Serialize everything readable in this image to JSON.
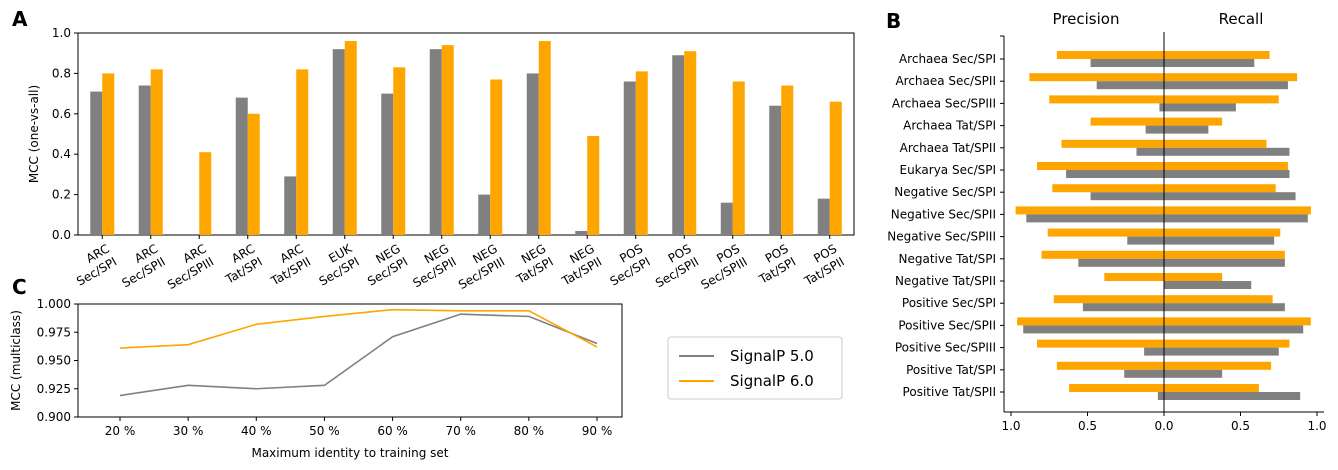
{
  "colors": {
    "signalp5": "#808080",
    "signalp6": "#FFA500"
  },
  "panel_labels": {
    "a": "A",
    "b": "B",
    "c": "C"
  },
  "legend": {
    "items": [
      "SignalP 5.0",
      "SignalP 6.0"
    ]
  },
  "chart_data": [
    {
      "panel": "A",
      "type": "bar",
      "ylabel": "MCC (one-vs-all)",
      "ylim": [
        0,
        1
      ],
      "yticks": [
        "0.0",
        "0.2",
        "0.4",
        "0.6",
        "0.8",
        "1.0"
      ],
      "categories": [
        [
          "ARC",
          "Sec/SPI"
        ],
        [
          "ARC",
          "Sec/SPII"
        ],
        [
          "ARC",
          "Sec/SPIII"
        ],
        [
          "ARC",
          "Tat/SPI"
        ],
        [
          "ARC",
          "Tat/SPII"
        ],
        [
          "EUK",
          "Sec/SPI"
        ],
        [
          "NEG",
          "Sec/SPI"
        ],
        [
          "NEG",
          "Sec/SPII"
        ],
        [
          "NEG",
          "Sec/SPIII"
        ],
        [
          "NEG",
          "Tat/SPI"
        ],
        [
          "NEG",
          "Tat/SPII"
        ],
        [
          "POS",
          "Sec/SPI"
        ],
        [
          "POS",
          "Sec/SPII"
        ],
        [
          "POS",
          "Sec/SPIII"
        ],
        [
          "POS",
          "Tat/SPI"
        ],
        [
          "POS",
          "Tat/SPII"
        ]
      ],
      "series": [
        {
          "name": "SignalP 5.0",
          "values": [
            0.71,
            0.74,
            0.0,
            0.68,
            0.29,
            0.92,
            0.7,
            0.92,
            0.2,
            0.8,
            0.02,
            0.76,
            0.89,
            0.16,
            0.64,
            0.18
          ]
        },
        {
          "name": "SignalP 6.0",
          "values": [
            0.8,
            0.82,
            0.41,
            0.6,
            0.82,
            0.96,
            0.83,
            0.94,
            0.77,
            0.96,
            0.49,
            0.81,
            0.91,
            0.76,
            0.74,
            0.66
          ]
        }
      ]
    },
    {
      "panel": "B",
      "type": "bar",
      "orientation": "horizontal",
      "titles": [
        "Precision",
        "Recall"
      ],
      "xticks": [
        "1.0",
        "0.5",
        "0.0",
        "0.5",
        "1.0"
      ],
      "xlim": [
        -1,
        1
      ],
      "categories": [
        "Archaea Sec/SPI",
        "Archaea Sec/SPII",
        "Archaea Sec/SPIII",
        "Archaea Tat/SPI",
        "Archaea Tat/SPII",
        "Eukarya Sec/SPI",
        "Negative Sec/SPI",
        "Negative Sec/SPII",
        "Negative Sec/SPIII",
        "Negative Tat/SPI",
        "Negative Tat/SPII",
        "Positive Sec/SPI",
        "Positive Sec/SPII",
        "Positive Sec/SPIII",
        "Positive Tat/SPI",
        "Positive Tat/SPII"
      ],
      "series": [
        {
          "name": "SignalP 5.0",
          "precision": [
            0.48,
            0.44,
            0.03,
            0.12,
            0.18,
            0.64,
            0.48,
            0.9,
            0.24,
            0.56,
            0.0,
            0.53,
            0.92,
            0.13,
            0.26,
            0.04
          ],
          "recall": [
            0.59,
            0.81,
            0.47,
            0.29,
            0.82,
            0.82,
            0.86,
            0.94,
            0.72,
            0.79,
            0.57,
            0.79,
            0.91,
            0.75,
            0.38,
            0.89
          ]
        },
        {
          "name": "SignalP 6.0",
          "precision": [
            0.7,
            0.88,
            0.75,
            0.48,
            0.67,
            0.83,
            0.73,
            0.97,
            0.76,
            0.8,
            0.39,
            0.72,
            0.96,
            0.83,
            0.7,
            0.62
          ],
          "recall": [
            0.69,
            0.87,
            0.75,
            0.38,
            0.67,
            0.81,
            0.73,
            0.96,
            0.76,
            0.79,
            0.38,
            0.71,
            0.96,
            0.82,
            0.7,
            0.62
          ]
        }
      ]
    },
    {
      "panel": "C",
      "type": "line",
      "xlabel": "Maximum identity to training set",
      "ylabel": "MCC (multiclass)",
      "x": [
        "20 %",
        "30 %",
        "40 %",
        "50 %",
        "60 %",
        "70 %",
        "80 %",
        "90 %"
      ],
      "ylim": [
        0.9,
        1.0
      ],
      "yticks": [
        "0.900",
        "0.925",
        "0.950",
        "0.975",
        "1.000"
      ],
      "series": [
        {
          "name": "SignalP 5.0",
          "values": [
            0.919,
            0.928,
            0.925,
            0.928,
            0.971,
            0.991,
            0.989,
            0.965
          ]
        },
        {
          "name": "SignalP 6.0",
          "values": [
            0.961,
            0.964,
            0.982,
            0.989,
            0.995,
            0.994,
            0.994,
            0.962
          ]
        }
      ],
      "legend_position": "right"
    }
  ]
}
